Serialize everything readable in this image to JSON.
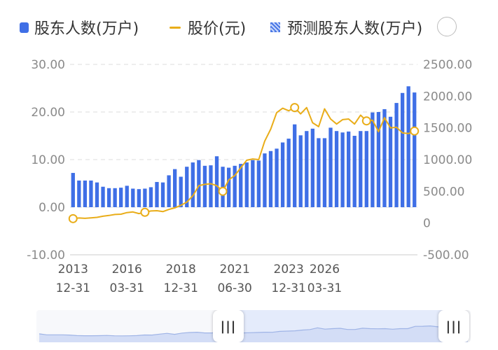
{
  "legend": {
    "holders_label": "股东人数(万户)",
    "price_label": "股价(元)",
    "forecast_label": "预测股东人数(万户)"
  },
  "colors": {
    "bar": "#3f6fe6",
    "price_line": "#e9ad19",
    "grid": "#dcdcdc",
    "zoom_fill": "#e4ebfb"
  },
  "zoom": {
    "handle_left_icon": "grip-icon",
    "handle_right_icon": "grip-icon",
    "handle_glyph": "|||",
    "range_start": 0.44,
    "range_end": 1.0
  },
  "chart_data": {
    "type": "bar",
    "left_axis": {
      "ticks": [
        "30.00",
        "20.00",
        "10.00",
        "0.00",
        "-10.00"
      ],
      "ylim": [
        -10,
        30
      ]
    },
    "right_axis": {
      "ticks": [
        "2500.00",
        "2000.00",
        "1500.00",
        "1000.00",
        "500.00",
        "0",
        "-500.00"
      ],
      "ylim": [
        -500,
        2500
      ]
    },
    "x_ticks": [
      {
        "index": 0,
        "year": "2013",
        "date": "12-31"
      },
      {
        "index": 9,
        "year": "2016",
        "date": "03-31"
      },
      {
        "index": 18,
        "year": "2018",
        "date": "12-31"
      },
      {
        "index": 27,
        "year": "2021",
        "date": "06-30"
      },
      {
        "index": 36,
        "year": "2023",
        "date": "12-31"
      },
      {
        "index": 42,
        "year": "2026",
        "date": "03-31"
      }
    ],
    "grid": true,
    "series": [
      {
        "name": "股东人数(万户)",
        "type": "bar",
        "axis": "left",
        "values": [
          7.2,
          5.6,
          5.6,
          5.6,
          5.2,
          4.3,
          4.0,
          4.0,
          4.1,
          4.5,
          3.9,
          3.8,
          3.9,
          4.2,
          5.3,
          5.2,
          6.7,
          8.0,
          6.4,
          8.5,
          9.4,
          9.9,
          8.7,
          8.8,
          10.7,
          8.5,
          8.3,
          8.7,
          9.1,
          9.4,
          9.9,
          9.8,
          11.3,
          11.8,
          12.3,
          13.6,
          14.4,
          17.4,
          15.1,
          16.0,
          16.5,
          14.5,
          14.5,
          16.7,
          16.0,
          15.7,
          15.9,
          15.0,
          16.0,
          16.0,
          19.9,
          20.0,
          20.6,
          19.0,
          21.9,
          24.0,
          25.4,
          24.1
        ]
      },
      {
        "name": "股价(元)",
        "type": "line",
        "axis": "right",
        "values": [
          70,
          80,
          75,
          82,
          90,
          108,
          120,
          135,
          140,
          165,
          175,
          150,
          170,
          190,
          195,
          180,
          215,
          240,
          280,
          330,
          430,
          590,
          610,
          620,
          590,
          500,
          680,
          750,
          870,
          990,
          1010,
          1000,
          1290,
          1480,
          1740,
          1810,
          1770,
          1820,
          1720,
          1820,
          1580,
          1520,
          1800,
          1640,
          1560,
          1630,
          1640,
          1560,
          1700,
          1610,
          1620,
          1440,
          1660,
          1500,
          1510,
          1420,
          1410,
          1450
        ],
        "markers": [
          0,
          12,
          25,
          37,
          49,
          57
        ]
      }
    ]
  }
}
